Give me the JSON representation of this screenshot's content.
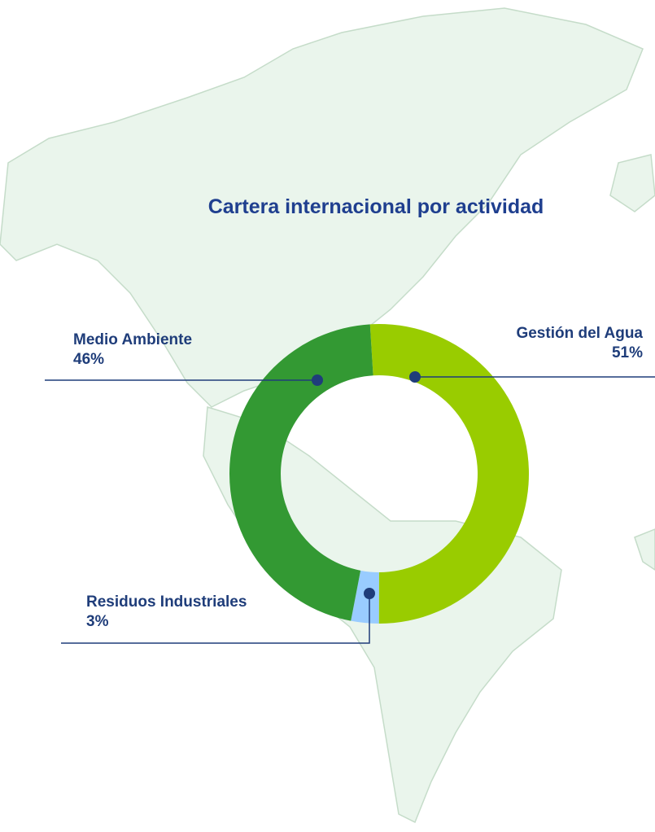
{
  "chart_data": {
    "type": "donut",
    "title": "Cartera internacional por actividad",
    "categories": [
      "Gestión del Agua",
      "Residuos Industriales",
      "Medio Ambiente"
    ],
    "values": [
      51,
      3,
      46
    ],
    "value_labels": [
      "51%",
      "3%",
      "46%"
    ],
    "colors": [
      "#99cc00",
      "#99ccff",
      "#339933"
    ]
  }
}
